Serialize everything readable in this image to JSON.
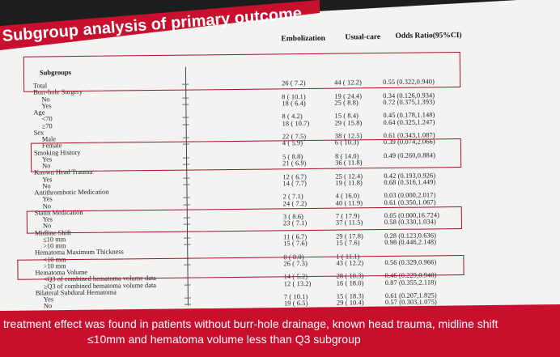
{
  "title": "Subgroup analysis of primary outcome",
  "headers": {
    "subgroups": "Subgroups",
    "embolization": "Embolization",
    "usual_care": "Usual-care",
    "odds_ratio": "Odds Ratio(95%CI)"
  },
  "rows": [
    {
      "label": "Total",
      "emb": "26 ( 7.2)",
      "usual": "44 ( 12.2)",
      "or": "0.55 (0.322,0.940)"
    },
    {
      "label": "Burr-hole Surgery"
    },
    {
      "label": "No",
      "emb": "8 ( 10.1)",
      "usual": "19 ( 24.4)",
      "or": "0.34 (0.126,0.934)"
    },
    {
      "label": "Yes",
      "emb": "18 ( 6.4)",
      "usual": "25 ( 8.8)",
      "or": "0.72 (0.375,1.393)"
    },
    {
      "label": "Age"
    },
    {
      "label": "<70",
      "emb": "8 ( 4.2)",
      "usual": "15 ( 8.4)",
      "or": "0.45 (0.178,1.148)"
    },
    {
      "label": "≥70",
      "emb": "18 ( 10.7)",
      "usual": "29 ( 15.8)",
      "or": "0.64 (0.325,1.247)"
    },
    {
      "label": "Sex"
    },
    {
      "label": "Male",
      "emb": "22 ( 7.5)",
      "usual": "38 ( 12.5)",
      "or": "0.61 (0.343,1.087)"
    },
    {
      "label": "Female",
      "emb": "4 ( 5.9)",
      "usual": "6 ( 10.3)",
      "or": "0.39 (0.074,2.066)"
    },
    {
      "label": "Smoking History"
    },
    {
      "label": "Yes",
      "emb": "5 ( 8.8)",
      "usual": "8 ( 14.0)",
      "or": "0.49 (0.260,0.884)"
    },
    {
      "label": "No",
      "emb": "21 ( 6.9)",
      "usual": "36 ( 11.8)",
      "or": ""
    },
    {
      "label": "Known Head Trauma"
    },
    {
      "label": "Yes",
      "emb": "12 ( 6.7)",
      "usual": "25 ( 12.4)",
      "or": "0.42 (0.193,0.926)"
    },
    {
      "label": "No",
      "emb": "14 ( 7.7)",
      "usual": "19 ( 11.8)",
      "or": "0.68 (0.316,1.449)"
    },
    {
      "label": "Antithrombotic Medication"
    },
    {
      "label": "Yes",
      "emb": "2 ( 7.1)",
      "usual": "4 ( 16.0)",
      "or": "0.03 (0.000,2.017)"
    },
    {
      "label": "No",
      "emb": "24 ( 7.2)",
      "usual": "40 ( 11.9)",
      "or": "0.61 (0.350,1.067)"
    },
    {
      "label": "Statin Medication"
    },
    {
      "label": "Yes",
      "emb": "3 ( 8.6)",
      "usual": "7 ( 17.9)",
      "or": "0.05 (0.000,16.724)"
    },
    {
      "label": "No",
      "emb": "23 ( 7.1)",
      "usual": "37 ( 11.5)",
      "or": "0.58 (0.330,1.034)"
    },
    {
      "label": "Midline Shift"
    },
    {
      "label": "≤10 mm",
      "emb": "11 ( 6.7)",
      "usual": "29 ( 17.8)",
      "or": "0.28 (0.123,0.636)"
    },
    {
      "label": ">10 mm",
      "emb": "15 ( 7.6)",
      "usual": "15 ( 7.6)",
      "or": "0.98 (0.446,2.148)"
    },
    {
      "label": "Hematoma Maximum Thickness"
    },
    {
      "label": "<10 mm",
      "emb": "0 ( 0.0)",
      "usual": "1 ( 11.1)",
      "or": ""
    },
    {
      "label": ">10 mm",
      "emb": "26 ( 7.3)",
      "usual": "43 ( 12.2)",
      "or": "0.56 (0.329,0.966)"
    },
    {
      "label": "Hematoma Volume"
    },
    {
      "label": "<Q3 of combined hematoma volume data",
      "emb": "14 ( 5.2)",
      "usual": "28 ( 10.3)",
      "or": "0.46 (0.229,0.940)"
    },
    {
      "label": "≥Q3 of combined hematoma volume data",
      "emb": "12 ( 13.2)",
      "usual": "16 ( 18.0)",
      "or": "0.87 (0.355,2.118)"
    },
    {
      "label": "Bilateral Subdural Hematoma"
    },
    {
      "label": "Yes",
      "emb": "7 ( 10.1)",
      "usual": "15 ( 18.3)",
      "or": "0.61 (0.207,1.825)"
    },
    {
      "label": "No",
      "emb": "19 ( 6.5)",
      "usual": "29 ( 10.4)",
      "or": "0.57 (0.303,1.075)"
    }
  ],
  "footer": {
    "line1": "treatment effect was found in patients without burr-hole drainage, known head trauma, midline shift",
    "line2": "≤10mm and hematoma volume less than Q3 subgroup"
  },
  "colors": {
    "accent": "#c8102e",
    "highlight_box": "#a3122a"
  }
}
